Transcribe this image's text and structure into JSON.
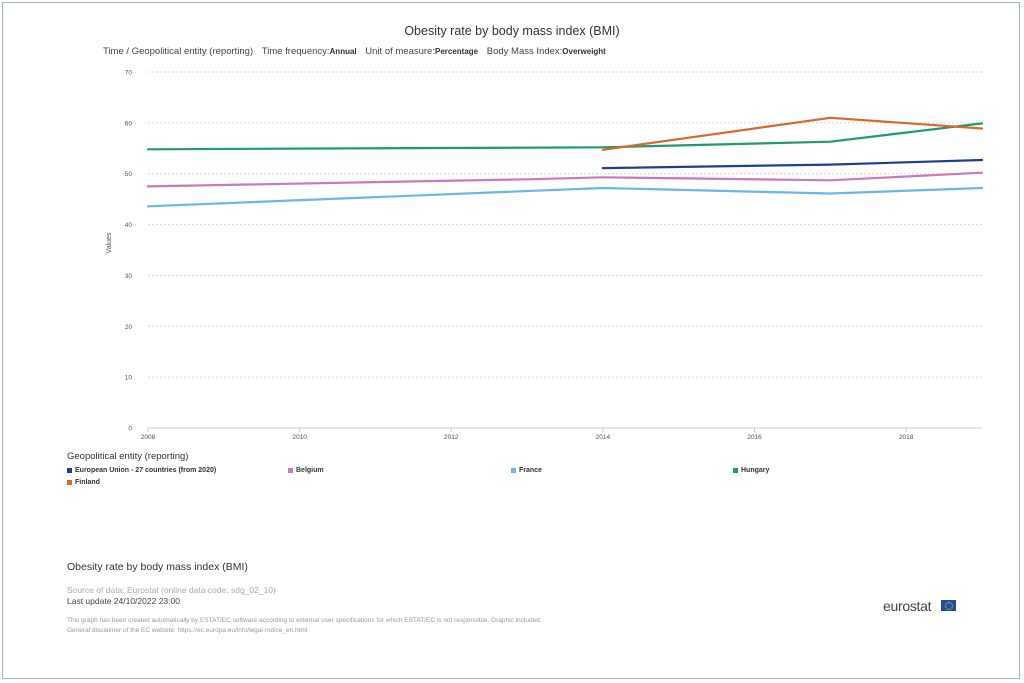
{
  "chart_data": {
    "type": "line",
    "title": "Obesity rate by body mass index (BMI)",
    "subtitle": {
      "dim": "Time / Geopolitical entity (reporting)",
      "freq_label": "Time frequency:",
      "freq_value": "Annual",
      "unit_label": "Unit of measure:",
      "unit_value": "Percentage",
      "bmi_label": "Body Mass Index:",
      "bmi_value": "Overweight"
    },
    "ylabel": "Values",
    "xlabel": "",
    "ylim": [
      0,
      70
    ],
    "yticks": [
      0,
      10,
      20,
      30,
      40,
      50,
      60,
      70
    ],
    "xlim": [
      2008,
      2019
    ],
    "xticks": [
      2008,
      2010,
      2012,
      2014,
      2016,
      2018
    ],
    "grid": true,
    "legend_title": "Geopolitical entity (reporting)",
    "series": [
      {
        "name": "European Union - 27 countries (from 2020)",
        "color": "#1f3f94",
        "x": [
          2014,
          2017,
          2019
        ],
        "values": [
          51.1,
          51.8,
          52.7
        ]
      },
      {
        "name": "Belgium",
        "color": "#cc79b8",
        "x": [
          2008,
          2013,
          2014,
          2017,
          2019
        ],
        "values": [
          47.5,
          48.9,
          49.3,
          48.7,
          50.2
        ]
      },
      {
        "name": "France",
        "color": "#6bb7e8",
        "x": [
          2008,
          2014,
          2017,
          2019
        ],
        "values": [
          43.6,
          47.2,
          46.1,
          47.2
        ]
      },
      {
        "name": "Hungary",
        "color": "#1f9b6e",
        "x": [
          2008,
          2014,
          2017,
          2019
        ],
        "values": [
          54.8,
          55.2,
          56.3,
          59.9
        ]
      },
      {
        "name": "Finland",
        "color": "#d9692a",
        "x": [
          2014,
          2017,
          2019
        ],
        "values": [
          54.7,
          61.0,
          58.9
        ]
      }
    ]
  },
  "footer": {
    "title": "Obesity rate by body mass index (BMI)",
    "source": "Source of data: Eurostat (online data code: sdg_02_10)",
    "update": "Last update 24/10/2022 23:00",
    "disclaimer1": "This graph has been created automatically by ESTAT/EC software according to external user specifications for which ESTAT/EC is not responsible. Graphic included.",
    "disclaimer2": "General disclaimer of the EC website: https://ec.europa.eu/info/legal-notice_en.html",
    "logo": "eurostat"
  }
}
